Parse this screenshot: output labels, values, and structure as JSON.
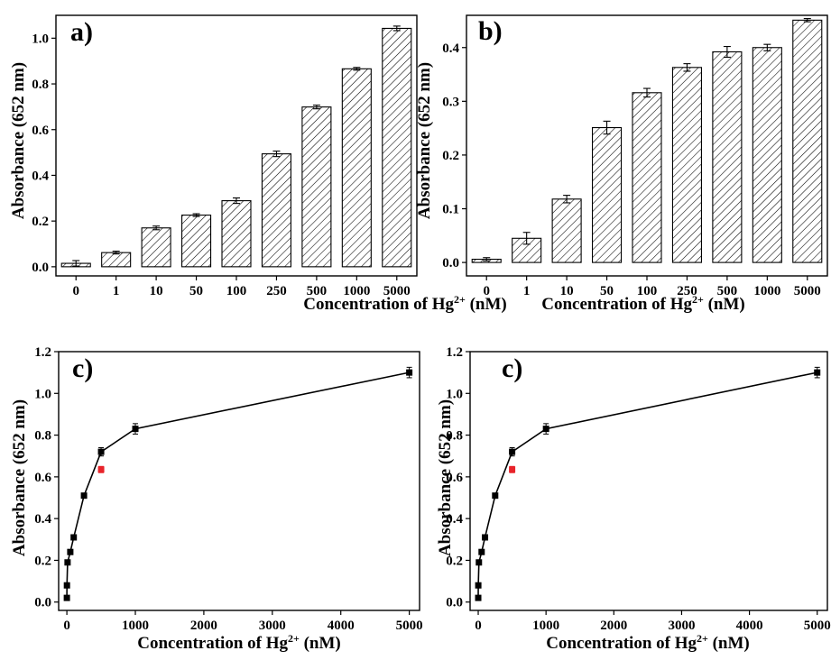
{
  "chart_data": [
    {
      "type": "bar",
      "panel_label": "a)",
      "categories": [
        "0",
        "1",
        "10",
        "50",
        "100",
        "250",
        "500",
        "1000",
        "5000"
      ],
      "values": [
        0.015,
        0.062,
        0.17,
        0.226,
        0.289,
        0.494,
        0.699,
        0.866,
        1.043
      ],
      "errors": [
        0.012,
        0.006,
        0.008,
        0.006,
        0.012,
        0.012,
        0.008,
        0.006,
        0.01
      ],
      "xlabel": "Concentration of Hg",
      "xlabel_sup": "2+",
      "xlabel_tail": " (nM)",
      "ylabel": "Absorbance (652 nm)",
      "ylim": [
        -0.04,
        1.1
      ],
      "yticks": [
        0.0,
        0.2,
        0.4,
        0.6,
        0.8,
        1.0
      ],
      "ytick_labels": [
        "0.0",
        "0.2",
        "0.4",
        "0.6",
        "0.8",
        "1.0"
      ],
      "bar_fill": "hatched",
      "grid": false
    },
    {
      "type": "bar",
      "panel_label": "b)",
      "categories": [
        "0",
        "1",
        "10",
        "50",
        "100",
        "250",
        "500",
        "1000",
        "5000"
      ],
      "values": [
        0.006,
        0.045,
        0.118,
        0.251,
        0.316,
        0.363,
        0.392,
        0.4,
        0.451
      ],
      "errors": [
        0.003,
        0.011,
        0.007,
        0.012,
        0.008,
        0.007,
        0.01,
        0.006,
        0.003
      ],
      "xlabel": "Concentration of Hg",
      "xlabel_sup": "2+",
      "xlabel_tail": " (nM)",
      "ylabel": "Absorbance (652 nm)",
      "ylim": [
        -0.025,
        0.46
      ],
      "yticks": [
        0.0,
        0.1,
        0.2,
        0.3,
        0.4
      ],
      "ytick_labels": [
        "0.0",
        "0.1",
        "0.2",
        "0.3",
        "0.4"
      ],
      "bar_fill": "hatched",
      "grid": false
    },
    {
      "type": "line",
      "panel_label": "c)",
      "x": [
        0,
        1,
        10,
        50,
        100,
        250,
        500,
        1000,
        5000
      ],
      "y": [
        0.02,
        0.08,
        0.19,
        0.24,
        0.31,
        0.51,
        0.72,
        0.83,
        1.1
      ],
      "errors": [
        0.01,
        0.01,
        0.01,
        0.01,
        0.01,
        0.01,
        0.02,
        0.025,
        0.025
      ],
      "highlight_point": {
        "x": 500,
        "y": 0.635,
        "error": 0.015,
        "color": "#e8232a"
      },
      "xlabel": "Concentration of Hg",
      "xlabel_sup": "2+",
      "xlabel_tail": " (nM)",
      "ylabel": "Absorbance (652 nm)",
      "xlim": [
        -120,
        5150
      ],
      "ylim": [
        -0.04,
        1.2
      ],
      "xticks": [
        0,
        1000,
        2000,
        3000,
        4000,
        5000
      ],
      "xtick_labels": [
        "0",
        "1000",
        "2000",
        "3000",
        "4000",
        "5000"
      ],
      "yticks": [
        0.0,
        0.2,
        0.4,
        0.6,
        0.8,
        1.0,
        1.2
      ],
      "ytick_labels": [
        "0.0",
        "0.2",
        "0.4",
        "0.6",
        "0.8",
        "1.0",
        "1.2"
      ],
      "marker": "square",
      "line_color": "#000000",
      "grid": false
    },
    {
      "type": "line",
      "panel_label": "c)",
      "x": [
        0,
        1,
        10,
        50,
        100,
        250,
        500,
        1000,
        5000
      ],
      "y": [
        0.02,
        0.08,
        0.19,
        0.24,
        0.31,
        0.51,
        0.72,
        0.83,
        1.1
      ],
      "errors": [
        0.01,
        0.01,
        0.01,
        0.01,
        0.01,
        0.01,
        0.02,
        0.025,
        0.025
      ],
      "highlight_point": {
        "x": 500,
        "y": 0.635,
        "error": 0.015,
        "color": "#e8232a"
      },
      "xlabel": "Concentration of Hg",
      "xlabel_sup": "2+",
      "xlabel_tail": " (nM)",
      "ylabel": "Absorbance (652 nm)",
      "xlim": [
        -120,
        5150
      ],
      "ylim": [
        -0.04,
        1.2
      ],
      "xticks": [
        0,
        1000,
        2000,
        3000,
        4000,
        5000
      ],
      "xtick_labels": [
        "0",
        "1000",
        "2000",
        "3000",
        "4000",
        "5000"
      ],
      "yticks": [
        0.0,
        0.2,
        0.4,
        0.6,
        0.8,
        1.0,
        1.2
      ],
      "ytick_labels": [
        "0.0",
        "0.2",
        "0.4",
        "0.6",
        "0.8",
        "1.0",
        "1.2"
      ],
      "marker": "square",
      "line_color": "#000000",
      "grid": false
    }
  ]
}
